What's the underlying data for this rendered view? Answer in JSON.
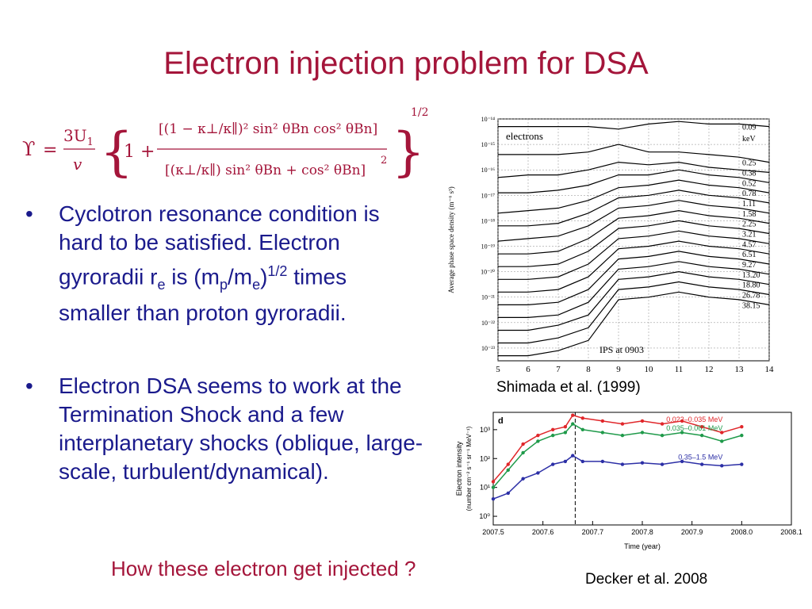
{
  "slide": {
    "title": "Electron injection problem for DSA",
    "bullet1": {
      "part1": "Cyclotron resonance condition is hard to be satisfied. Electron gyroradii r",
      "sub1": "e",
      "part2": " is (m",
      "sub2": "p",
      "part3": "/m",
      "sub3": "e",
      "part4": ")",
      "sup1": "1/2",
      "part5": " times smaller than proton gyroradii."
    },
    "bullet2": "Electron DSA seems to work at the Termination Shock and a few interplanetary shocks (oblique, large-scale, turbulent/dynamical).",
    "bullet_marker": "•",
    "question": "How these electron get injected ?",
    "caption1": "Shimada et al. (1999)",
    "caption2": "Decker et al. 2008",
    "colors": {
      "title": "#a4153a",
      "body": "#1a1a8c",
      "red": "#e0262a",
      "green": "#1f9a4a",
      "blue": "#2c2fa6"
    }
  },
  "formula": {
    "upsilon": "ϒ",
    "eq": "=",
    "num": "3U",
    "num_sub": "1",
    "den": "v",
    "one_plus": "1 +",
    "upper": "[(1 − κ⊥/κ∥)² sin² θBn cos² θBn]",
    "lower": "[(κ⊥/κ∥) sin² θBn + cos² θBn]",
    "lower_exp": "2",
    "outer_exp": "1/2"
  },
  "chart_data": [
    {
      "type": "line",
      "panel_label": "electrons",
      "annotation": "IPS at 0903",
      "ylabel": "Average phase space density (m⁻⁶ s³)",
      "units_label": "keV",
      "x": [
        5,
        6,
        7,
        8,
        9,
        10,
        11,
        12,
        13,
        14
      ],
      "xlim": [
        5,
        14
      ],
      "y_ticks": [
        "10⁻¹⁴",
        "10⁻¹⁵",
        "10⁻¹⁶",
        "10⁻¹⁷",
        "10⁻¹⁸",
        "10⁻¹⁹",
        "10⁻²⁰",
        "10⁻²¹",
        "10⁻²²",
        "10⁻²³"
      ],
      "y_log_range": [
        -23.5,
        -14
      ],
      "grid": true,
      "series": [
        {
          "name": "0.09",
          "values": [
            -14.3,
            -14.3,
            -14.3,
            -14.3,
            -14.4,
            -14.2,
            -14.1,
            -14.2,
            -14.2,
            -14.3
          ]
        },
        {
          "name": "0.25",
          "values": [
            -15.4,
            -15.4,
            -15.4,
            -15.3,
            -15.0,
            -15.3,
            -15.3,
            -15.4,
            -15.5,
            -15.7
          ]
        },
        {
          "name": "0.38",
          "values": [
            -16.3,
            -16.2,
            -16.2,
            -16.0,
            -15.7,
            -15.8,
            -15.7,
            -15.9,
            -16.0,
            -16.1
          ]
        },
        {
          "name": "0.52",
          "values": [
            -16.9,
            -16.9,
            -16.8,
            -16.6,
            -16.2,
            -16.2,
            -16.0,
            -16.2,
            -16.3,
            -16.5
          ]
        },
        {
          "name": "0.78",
          "values": [
            -17.7,
            -17.6,
            -17.5,
            -17.2,
            -16.7,
            -16.6,
            -16.4,
            -16.6,
            -16.7,
            -16.9
          ]
        },
        {
          "name": "1.11",
          "values": [
            -18.2,
            -18.2,
            -18.1,
            -17.7,
            -17.1,
            -17.0,
            -16.8,
            -17.0,
            -17.1,
            -17.3
          ]
        },
        {
          "name": "1.58",
          "values": [
            -18.8,
            -18.7,
            -18.6,
            -18.2,
            -17.5,
            -17.4,
            -17.2,
            -17.4,
            -17.5,
            -17.7
          ]
        },
        {
          "name": "2.25",
          "values": [
            -19.3,
            -19.3,
            -19.2,
            -18.7,
            -17.9,
            -17.8,
            -17.6,
            -17.8,
            -17.9,
            -18.1
          ]
        },
        {
          "name": "3.21",
          "values": [
            -19.8,
            -19.8,
            -19.7,
            -19.2,
            -18.3,
            -18.2,
            -18.0,
            -18.2,
            -18.3,
            -18.5
          ]
        },
        {
          "name": "4.57",
          "values": [
            -20.3,
            -20.3,
            -20.2,
            -19.7,
            -18.7,
            -18.6,
            -18.4,
            -18.6,
            -18.7,
            -18.9
          ]
        },
        {
          "name": "6.51",
          "values": [
            -20.8,
            -20.8,
            -20.7,
            -20.2,
            -19.1,
            -19.0,
            -18.8,
            -19.0,
            -19.1,
            -19.3
          ]
        },
        {
          "name": "9.27",
          "values": [
            -21.3,
            -21.3,
            -21.2,
            -20.7,
            -19.5,
            -19.4,
            -19.2,
            -19.4,
            -19.5,
            -19.7
          ]
        },
        {
          "name": "13.20",
          "values": [
            -21.8,
            -21.8,
            -21.7,
            -21.2,
            -19.9,
            -19.8,
            -19.6,
            -19.8,
            -19.9,
            -20.1
          ]
        },
        {
          "name": "18.80",
          "values": [
            -22.3,
            -22.3,
            -22.1,
            -21.7,
            -20.3,
            -20.2,
            -20.0,
            -20.2,
            -20.3,
            -20.5
          ]
        },
        {
          "name": "26.78",
          "values": [
            -22.8,
            -22.8,
            -22.6,
            -22.2,
            -20.7,
            -20.6,
            -20.4,
            -20.6,
            -20.7,
            -20.9
          ]
        },
        {
          "name": "38.15",
          "values": [
            -23.3,
            -23.3,
            -23.1,
            -22.7,
            -21.1,
            -21.0,
            -20.8,
            -21.0,
            -21.1,
            -21.3
          ]
        }
      ]
    },
    {
      "type": "scatter",
      "panel_label": "d",
      "xlabel": "Time (year)",
      "ylabel_line1": "Electron intensity",
      "ylabel_line2": "(number cm⁻² s⁻¹ sr⁻¹ MeV⁻¹)",
      "x_ticks": [
        "2007.5",
        "2007.6",
        "2007.7",
        "2007.8",
        "2007.9",
        "2008.0",
        "2008.1"
      ],
      "xlim": [
        2007.5,
        2008.1
      ],
      "y_ticks": [
        "10⁰",
        "10¹",
        "10²",
        "10³"
      ],
      "y_log_range": [
        -0.3,
        3.6
      ],
      "x": [
        2007.5,
        2007.53,
        2007.56,
        2007.59,
        2007.62,
        2007.645,
        2007.66,
        2007.68,
        2007.72,
        2007.76,
        2007.8,
        2007.84,
        2007.88,
        2007.92,
        2007.96,
        2008.0
      ],
      "series": [
        {
          "name": "0.022–0.035 MeV",
          "color": "red",
          "values": [
            1.2,
            1.8,
            2.5,
            2.8,
            3.0,
            3.1,
            3.5,
            3.4,
            3.3,
            3.2,
            3.3,
            3.2,
            3.3,
            3.1,
            2.9,
            3.1
          ]
        },
        {
          "name": "0.035–0.061 MeV",
          "color": "green",
          "values": [
            1.0,
            1.6,
            2.2,
            2.6,
            2.8,
            2.9,
            3.2,
            3.0,
            2.9,
            2.8,
            2.9,
            2.8,
            2.9,
            2.8,
            2.6,
            2.8
          ]
        },
        {
          "name": "0.35–1.5 MeV",
          "color": "blue",
          "values": [
            0.6,
            0.8,
            1.3,
            1.5,
            1.8,
            1.9,
            2.1,
            1.9,
            1.9,
            1.8,
            1.85,
            1.8,
            1.9,
            1.8,
            1.75,
            1.8
          ]
        }
      ],
      "shock_marker_x": 2007.665
    }
  ]
}
